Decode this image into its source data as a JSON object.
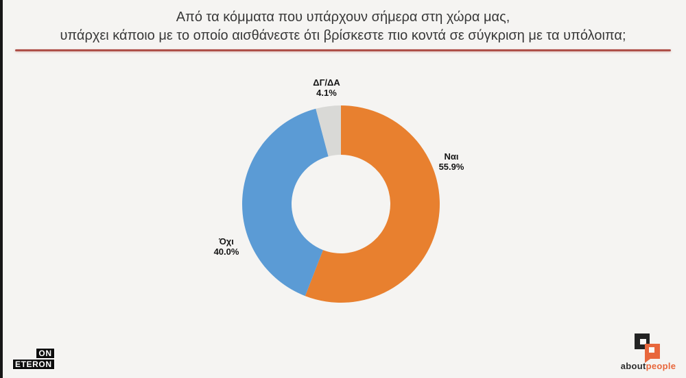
{
  "title": {
    "line1": "Από τα κόμματα που υπάρχουν σήμερα στη χώρα μας,",
    "line2": "υπάρχει κάποιο με το οποίο αισθάνεστε ότι βρίσκεστε πιο κοντά σε σύγκριση με τα υπόλοιπα;"
  },
  "chart_data": {
    "type": "pie",
    "subtype": "donut",
    "start_angle_deg": 0,
    "direction": "clockwise",
    "hole_ratio": 0.5,
    "categories": [
      "Ναι",
      "Όχι",
      "ΔΓ/ΔΑ"
    ],
    "values": [
      55.9,
      40.0,
      4.1
    ],
    "colors": [
      "#e8802f",
      "#5b9bd5",
      "#d9d9d6"
    ],
    "labels": [
      {
        "name": "Ναι",
        "value": "55.9%"
      },
      {
        "name": "Όχι",
        "value": "40.0%"
      },
      {
        "name": "ΔΓ/ΔΑ",
        "value": "4.1%"
      }
    ],
    "legend": "none",
    "grid": false
  },
  "branding": {
    "eteron": {
      "top": "ON",
      "bottom": "ETERON"
    },
    "aboutpeople": {
      "black_part": "about",
      "orange_part": "people"
    }
  },
  "accent": {
    "divider_color": "#ae5049",
    "logo_orange": "#e8673c"
  }
}
